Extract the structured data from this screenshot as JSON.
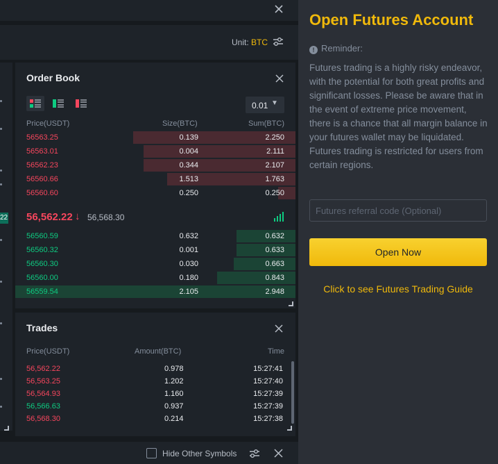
{
  "unit": {
    "label": "Unit:",
    "value": "BTC"
  },
  "left_strip": {
    "badge": "22"
  },
  "order_book": {
    "title": "Order Book",
    "precision": "0.01",
    "columns": {
      "price": "Price(USDT)",
      "size": "Size(BTC)",
      "sum": "Sum(BTC)"
    },
    "asks": [
      {
        "price": "56563.25",
        "size": "0.139",
        "sum": "2.250",
        "depth": 0.76
      },
      {
        "price": "56563.01",
        "size": "0.004",
        "sum": "2.111",
        "depth": 0.71
      },
      {
        "price": "56562.23",
        "size": "0.344",
        "sum": "2.107",
        "depth": 0.71
      },
      {
        "price": "56560.66",
        "size": "1.513",
        "sum": "1.763",
        "depth": 0.6
      },
      {
        "price": "56560.60",
        "size": "0.250",
        "sum": "0.250",
        "depth": 0.08
      }
    ],
    "last_price": "56,562.22",
    "last_direction": "↓",
    "mark_price": "56,568.30",
    "bids": [
      {
        "price": "56560.59",
        "size": "0.632",
        "sum": "0.632",
        "depth": 0.21
      },
      {
        "price": "56560.32",
        "size": "0.001",
        "sum": "0.633",
        "depth": 0.21
      },
      {
        "price": "56560.30",
        "size": "0.030",
        "sum": "0.663",
        "depth": 0.22
      },
      {
        "price": "56560.00",
        "size": "0.180",
        "sum": "0.843",
        "depth": 0.28
      },
      {
        "price": "56559.54",
        "size": "2.105",
        "sum": "2.948",
        "depth": 1.0
      }
    ]
  },
  "trades": {
    "title": "Trades",
    "columns": {
      "price": "Price(USDT)",
      "amount": "Amount(BTC)",
      "time": "Time"
    },
    "rows": [
      {
        "price": "56,562.22",
        "amount": "0.978",
        "time": "15:27:41",
        "side": "sell"
      },
      {
        "price": "56,563.25",
        "amount": "1.202",
        "time": "15:27:40",
        "side": "sell"
      },
      {
        "price": "56,564.93",
        "amount": "1.160",
        "time": "15:27:39",
        "side": "sell"
      },
      {
        "price": "56,566.63",
        "amount": "0.937",
        "time": "15:27:39",
        "side": "buy"
      },
      {
        "price": "56,568.30",
        "amount": "0.214",
        "time": "15:27:38",
        "side": "sell"
      }
    ]
  },
  "bottom_bar": {
    "hide_label": "Hide Other Symbols",
    "hide_checked": false
  },
  "futures": {
    "title": "Open Futures Account",
    "reminder": "Reminder:",
    "description": "Futures trading is a highly risky endeavor, with the potential for both great profits and significant losses. Please be aware that in the event of extreme price movement, there is a chance that all margin balance in your futures wallet may be liquidated. Futures trading is restricted for users from certain regions.",
    "referral_placeholder": "Futures referral code (Optional)",
    "referral_value": "",
    "open_button": "Open Now",
    "guide_link": "Click to see Futures Trading Guide"
  },
  "colors": {
    "accent": "#f0b90b",
    "sell": "#f6465d",
    "buy": "#0ecb81",
    "panel": "#1e2329",
    "sidebar": "#2b2f36"
  }
}
